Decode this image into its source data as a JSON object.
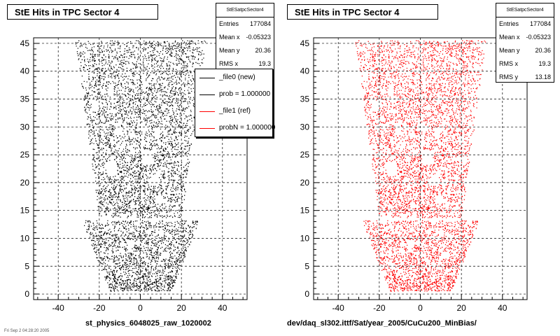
{
  "chart_data": [
    {
      "type": "scatter",
      "title": "StE Hits in TPC Sector 4",
      "marker_color": "#000000",
      "xlim": [
        -52,
        52
      ],
      "ylim": [
        -1,
        46
      ],
      "x_ticks": [
        -40,
        -20,
        0,
        20,
        40
      ],
      "y_ticks": [
        0,
        5,
        10,
        15,
        20,
        25,
        30,
        35,
        40,
        45
      ],
      "grid": true,
      "footer": "st_physics_6048025_raw_1020002",
      "stats": {
        "name": "StESatpcSector4",
        "rows": [
          {
            "label": "Entries",
            "value": "177084"
          },
          {
            "label": "Mean x",
            "value": "-0.05323"
          },
          {
            "label": "Mean y",
            "value": "20.36"
          },
          {
            "label": "RMS x",
            "value": "19.3"
          }
        ]
      },
      "legend": {
        "placement": "top-right",
        "entries": [
          {
            "label": "_file0 (new)",
            "color": "#000000"
          },
          {
            "label": "prob = 1.000000",
            "color": "#000000"
          },
          {
            "label": "_file1 (ref)",
            "color": "#ff0000"
          },
          {
            "label": "probN = 1.000000",
            "color": "#ff0000"
          }
        ]
      },
      "entries": 177084,
      "mean_x": -0.05323,
      "mean_y": 20.36,
      "rms_x": 19.3
    },
    {
      "type": "scatter",
      "title": "StE Hits in TPC Sector 4",
      "marker_color": "#ff0000",
      "xlim": [
        -52,
        52
      ],
      "ylim": [
        -1,
        46
      ],
      "x_ticks": [
        -40,
        -20,
        0,
        20,
        40
      ],
      "y_ticks": [
        0,
        5,
        10,
        15,
        20,
        25,
        30,
        35,
        40,
        45
      ],
      "grid": true,
      "footer": "dev/daq_sl302.ittf/Sat/year_2005/CuCu200_MinBias/",
      "stats": {
        "name": "StESatpcSector4",
        "rows": [
          {
            "label": "Entries",
            "value": "177084"
          },
          {
            "label": "Mean x",
            "value": "-0.05323"
          },
          {
            "label": "Mean y",
            "value": "20.36"
          },
          {
            "label": "RMS x",
            "value": "19.3"
          },
          {
            "label": "RMS y",
            "value": "13.18"
          }
        ]
      },
      "entries": 177084,
      "mean_x": -0.05323,
      "mean_y": 20.36,
      "rms_x": 19.3,
      "rms_y": 13.18
    }
  ],
  "corner_date": "Fri Sep 2 04:28:20 2005"
}
